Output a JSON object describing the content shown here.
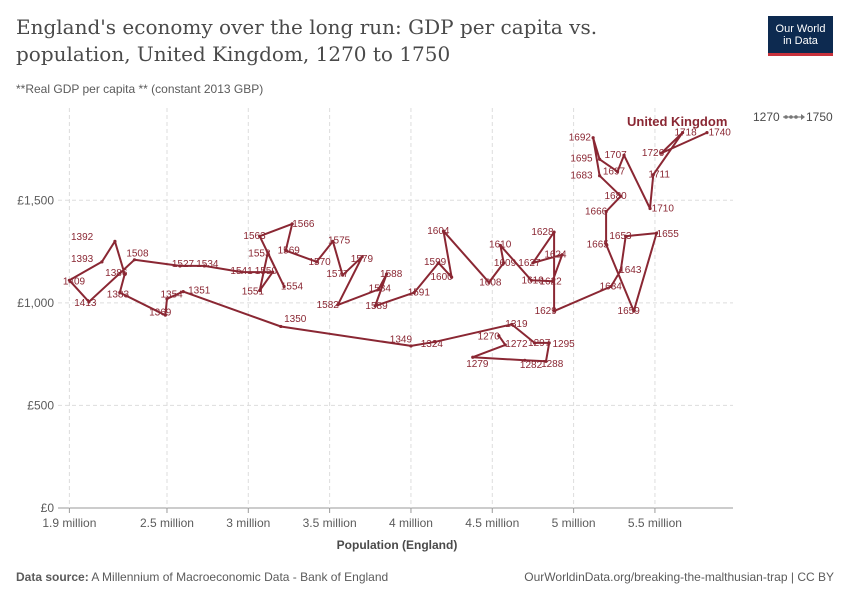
{
  "header": {
    "title": "England's economy over the long run: GDP per capita vs. population, United Kingdom, 1270 to 1750",
    "subtitle": "**Real GDP per capita ** (constant 2013 GBP)",
    "logo_line1": "Our World",
    "logo_line2": "in Data"
  },
  "footer": {
    "source_label": "Data source:",
    "source_text": "A Millennium of Macroeconomic Data - Bank of England",
    "url_text": "OurWorldinData.org/breaking-the-malthusian-trap | CC BY"
  },
  "timeline": {
    "start": "1270",
    "end": "1750"
  },
  "chart_data": {
    "type": "scatter",
    "connected": true,
    "xlabel": "Population (England)",
    "ylabel": "",
    "xlim": [
      1.83,
      5.98
    ],
    "ylim": [
      0,
      1950
    ],
    "x_ticks": [
      {
        "value": 1.9,
        "label": "1.9 million"
      },
      {
        "value": 2.5,
        "label": "2.5 million"
      },
      {
        "value": 3.0,
        "label": "3 million"
      },
      {
        "value": 3.5,
        "label": "3.5 million"
      },
      {
        "value": 4.0,
        "label": "4 million"
      },
      {
        "value": 4.5,
        "label": "4.5 million"
      },
      {
        "value": 5.0,
        "label": "5 million"
      },
      {
        "value": 5.5,
        "label": "5.5 million"
      }
    ],
    "y_ticks": [
      {
        "value": 0,
        "label": "£0"
      },
      {
        "value": 500,
        "label": "£500"
      },
      {
        "value": 1000,
        "label": "£1,000"
      },
      {
        "value": 1500,
        "label": "£1,500"
      }
    ],
    "grid": "horizontal-dashed",
    "line_color": "#8a2733",
    "series_name": "United Kingdom",
    "points": [
      {
        "year": 1270,
        "x": 4.54,
        "y": 840
      },
      {
        "year": 1272,
        "x": 4.58,
        "y": 795
      },
      {
        "year": 1279,
        "x": 4.38,
        "y": 735
      },
      {
        "year": 1282,
        "x": 4.7,
        "y": 720
      },
      {
        "year": 1288,
        "x": 4.83,
        "y": 715
      },
      {
        "year": 1295,
        "x": 4.85,
        "y": 805
      },
      {
        "year": 1297,
        "x": 4.76,
        "y": 805
      },
      {
        "year": 1319,
        "x": 4.62,
        "y": 895
      },
      {
        "year": 1324,
        "x": 4.15,
        "y": 810
      },
      {
        "year": 1349,
        "x": 4.0,
        "y": 790
      },
      {
        "year": 1350,
        "x": 3.2,
        "y": 885
      },
      {
        "year": 1351,
        "x": 2.6,
        "y": 1055
      },
      {
        "year": 1354,
        "x": 2.5,
        "y": 1020
      },
      {
        "year": 1369,
        "x": 2.49,
        "y": 940
      },
      {
        "year": 1383,
        "x": 2.21,
        "y": 1050
      },
      {
        "year": 1386,
        "x": 2.24,
        "y": 1140
      },
      {
        "year": 1392,
        "x": 2.18,
        "y": 1300
      },
      {
        "year": 1393,
        "x": 2.1,
        "y": 1200
      },
      {
        "year": 1409,
        "x": 1.9,
        "y": 1110
      },
      {
        "year": 1413,
        "x": 2.02,
        "y": 1005
      },
      {
        "year": 1508,
        "x": 2.3,
        "y": 1210
      },
      {
        "year": 1527,
        "x": 2.58,
        "y": 1180
      },
      {
        "year": 1534,
        "x": 2.73,
        "y": 1180
      },
      {
        "year": 1541,
        "x": 2.96,
        "y": 1150
      },
      {
        "year": 1550,
        "x": 3.15,
        "y": 1150
      },
      {
        "year": 1551,
        "x": 3.07,
        "y": 1060
      },
      {
        "year": 1553,
        "x": 3.12,
        "y": 1245
      },
      {
        "year": 1554,
        "x": 3.22,
        "y": 1080
      },
      {
        "year": 1563,
        "x": 3.07,
        "y": 1325
      },
      {
        "year": 1566,
        "x": 3.27,
        "y": 1385
      },
      {
        "year": 1569,
        "x": 3.23,
        "y": 1255
      },
      {
        "year": 1570,
        "x": 3.42,
        "y": 1200
      },
      {
        "year": 1575,
        "x": 3.52,
        "y": 1300
      },
      {
        "year": 1577,
        "x": 3.58,
        "y": 1135
      },
      {
        "year": 1579,
        "x": 3.7,
        "y": 1225
      },
      {
        "year": 1582,
        "x": 3.55,
        "y": 990
      },
      {
        "year": 1584,
        "x": 3.8,
        "y": 1065
      },
      {
        "year": 1588,
        "x": 3.85,
        "y": 1140
      },
      {
        "year": 1589,
        "x": 3.78,
        "y": 985
      },
      {
        "year": 1591,
        "x": 4.02,
        "y": 1050
      },
      {
        "year": 1599,
        "x": 4.17,
        "y": 1195
      },
      {
        "year": 1600,
        "x": 4.25,
        "y": 1125
      },
      {
        "year": 1604,
        "x": 4.2,
        "y": 1350
      },
      {
        "year": 1608,
        "x": 4.48,
        "y": 1100
      },
      {
        "year": 1609,
        "x": 4.57,
        "y": 1195
      },
      {
        "year": 1610,
        "x": 4.55,
        "y": 1280
      },
      {
        "year": 1619,
        "x": 4.74,
        "y": 1110
      },
      {
        "year": 1622,
        "x": 4.87,
        "y": 1105
      },
      {
        "year": 1624,
        "x": 4.93,
        "y": 1235
      },
      {
        "year": 1627,
        "x": 4.75,
        "y": 1195
      },
      {
        "year": 1628,
        "x": 4.88,
        "y": 1345
      },
      {
        "year": 1629,
        "x": 4.88,
        "y": 960
      },
      {
        "year": 1634,
        "x": 5.23,
        "y": 1080
      },
      {
        "year": 1643,
        "x": 5.29,
        "y": 1160
      },
      {
        "year": 1653,
        "x": 5.32,
        "y": 1325
      },
      {
        "year": 1655,
        "x": 5.51,
        "y": 1340
      },
      {
        "year": 1659,
        "x": 5.37,
        "y": 960
      },
      {
        "year": 1665,
        "x": 5.2,
        "y": 1285
      },
      {
        "year": 1666,
        "x": 5.2,
        "y": 1445
      },
      {
        "year": 1680,
        "x": 5.29,
        "y": 1520
      },
      {
        "year": 1683,
        "x": 5.16,
        "y": 1620
      },
      {
        "year": 1692,
        "x": 5.12,
        "y": 1805
      },
      {
        "year": 1695,
        "x": 5.16,
        "y": 1700
      },
      {
        "year": 1697,
        "x": 5.27,
        "y": 1640
      },
      {
        "year": 1707,
        "x": 5.31,
        "y": 1720
      },
      {
        "year": 1710,
        "x": 5.47,
        "y": 1460
      },
      {
        "year": 1711,
        "x": 5.49,
        "y": 1625
      },
      {
        "year": 1718,
        "x": 5.67,
        "y": 1830
      },
      {
        "year": 1726,
        "x": 5.54,
        "y": 1730
      },
      {
        "year": 1740,
        "x": 5.82,
        "y": 1830
      }
    ],
    "labels": [
      {
        "text": "1270",
        "x": 4.41,
        "y": 835
      },
      {
        "text": "1272",
        "x": 4.58,
        "y": 800
      },
      {
        "text": "1279",
        "x": 4.34,
        "y": 702
      },
      {
        "text": "1282",
        "x": 4.67,
        "y": 697
      },
      {
        "text": "1288",
        "x": 4.8,
        "y": 702
      },
      {
        "text": "1295",
        "x": 4.87,
        "y": 800
      },
      {
        "text": "1297",
        "x": 4.72,
        "y": 805
      },
      {
        "text": "1319",
        "x": 4.58,
        "y": 897
      },
      {
        "text": "1324",
        "x": 4.06,
        "y": 800
      },
      {
        "text": "1349",
        "x": 3.87,
        "y": 822
      },
      {
        "text": "1350",
        "x": 3.22,
        "y": 921
      },
      {
        "text": "1351",
        "x": 2.63,
        "y": 1060
      },
      {
        "text": "1354",
        "x": 2.46,
        "y": 1040
      },
      {
        "text": "1369",
        "x": 2.39,
        "y": 953
      },
      {
        "text": "1383",
        "x": 2.13,
        "y": 1040
      },
      {
        "text": "1386",
        "x": 2.12,
        "y": 1145
      },
      {
        "text": "1392",
        "x": 1.91,
        "y": 1320
      },
      {
        "text": "1393",
        "x": 1.91,
        "y": 1215
      },
      {
        "text": "1409",
        "x": 1.86,
        "y": 1105
      },
      {
        "text": "1413",
        "x": 1.93,
        "y": 1000
      },
      {
        "text": "1508",
        "x": 2.25,
        "y": 1240
      },
      {
        "text": "1527",
        "x": 2.53,
        "y": 1190
      },
      {
        "text": "1534",
        "x": 2.68,
        "y": 1190
      },
      {
        "text": "1541",
        "x": 2.89,
        "y": 1155
      },
      {
        "text": "1550",
        "x": 3.04,
        "y": 1155
      },
      {
        "text": "1551",
        "x": 2.96,
        "y": 1055
      },
      {
        "text": "1553",
        "x": 3.0,
        "y": 1240
      },
      {
        "text": "1554",
        "x": 3.2,
        "y": 1080
      },
      {
        "text": "1563",
        "x": 2.97,
        "y": 1325
      },
      {
        "text": "1566",
        "x": 3.27,
        "y": 1385
      },
      {
        "text": "1569",
        "x": 3.18,
        "y": 1255
      },
      {
        "text": "1570",
        "x": 3.37,
        "y": 1200
      },
      {
        "text": "1575",
        "x": 3.49,
        "y": 1305
      },
      {
        "text": "1577",
        "x": 3.48,
        "y": 1140
      },
      {
        "text": "1579",
        "x": 3.63,
        "y": 1215
      },
      {
        "text": "1582",
        "x": 3.42,
        "y": 990
      },
      {
        "text": "1584",
        "x": 3.74,
        "y": 1070
      },
      {
        "text": "1588",
        "x": 3.81,
        "y": 1140
      },
      {
        "text": "1589",
        "x": 3.72,
        "y": 985
      },
      {
        "text": "1591",
        "x": 3.98,
        "y": 1050
      },
      {
        "text": "1599",
        "x": 4.08,
        "y": 1200
      },
      {
        "text": "1600",
        "x": 4.12,
        "y": 1125
      },
      {
        "text": "1604",
        "x": 4.1,
        "y": 1350
      },
      {
        "text": "1608",
        "x": 4.42,
        "y": 1100
      },
      {
        "text": "1609",
        "x": 4.51,
        "y": 1195
      },
      {
        "text": "1610",
        "x": 4.48,
        "y": 1285
      },
      {
        "text": "1619",
        "x": 4.68,
        "y": 1110
      },
      {
        "text": "1622",
        "x": 4.79,
        "y": 1105
      },
      {
        "text": "1624",
        "x": 4.82,
        "y": 1235
      },
      {
        "text": "1627",
        "x": 4.66,
        "y": 1195
      },
      {
        "text": "1628",
        "x": 4.74,
        "y": 1345
      },
      {
        "text": "1629",
        "x": 4.76,
        "y": 960
      },
      {
        "text": "1634",
        "x": 5.16,
        "y": 1080
      },
      {
        "text": "1643",
        "x": 5.28,
        "y": 1160
      },
      {
        "text": "1653",
        "x": 5.22,
        "y": 1325
      },
      {
        "text": "1655",
        "x": 5.51,
        "y": 1335
      },
      {
        "text": "1659",
        "x": 5.27,
        "y": 960
      },
      {
        "text": "1665",
        "x": 5.08,
        "y": 1285
      },
      {
        "text": "1666",
        "x": 5.07,
        "y": 1445
      },
      {
        "text": "1680",
        "x": 5.19,
        "y": 1520
      },
      {
        "text": "1683",
        "x": 4.98,
        "y": 1620
      },
      {
        "text": "1692",
        "x": 4.97,
        "y": 1805
      },
      {
        "text": "1695",
        "x": 4.98,
        "y": 1705
      },
      {
        "text": "1697",
        "x": 5.18,
        "y": 1640
      },
      {
        "text": "1707",
        "x": 5.19,
        "y": 1720
      },
      {
        "text": "1710",
        "x": 5.48,
        "y": 1460
      },
      {
        "text": "1711",
        "x": 5.46,
        "y": 1625
      },
      {
        "text": "1718",
        "x": 5.62,
        "y": 1830
      },
      {
        "text": "1726",
        "x": 5.42,
        "y": 1730
      },
      {
        "text": "1740",
        "x": 5.83,
        "y": 1830
      }
    ]
  }
}
